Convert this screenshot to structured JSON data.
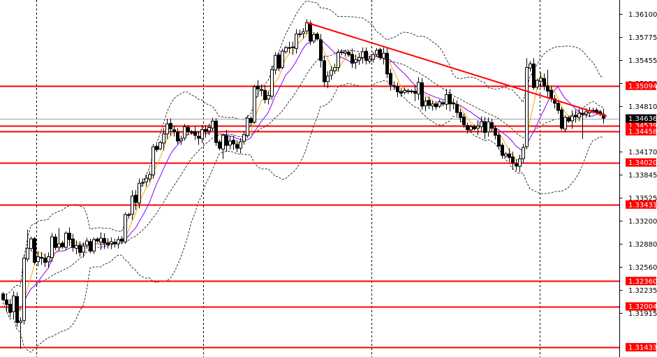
{
  "chart_data": {
    "type": "candlestick",
    "title": "",
    "xlabel": "",
    "ylabel": "",
    "ylim": [
      1.314,
      1.3625
    ],
    "grid": "vertical dotted separators",
    "y_ticks": [
      "1.36100",
      "1.35775",
      "1.35455",
      "1.35130",
      "1.34810",
      "1.34170",
      "1.33845",
      "1.33525",
      "1.33200",
      "1.32880",
      "1.32560",
      "1.32235",
      "1.31915"
    ],
    "current_price": {
      "label": "1.34636",
      "value": 1.34636,
      "bg": "#000000",
      "fg": "#ffffff"
    },
    "h_lines": [
      {
        "label": "1.35094",
        "value": 1.35094
      },
      {
        "label": "1.34539",
        "value": 1.34539
      },
      {
        "label": "1.34458",
        "value": 1.34458
      },
      {
        "label": "1.34020",
        "value": 1.3402
      },
      {
        "label": "1.33431",
        "value": 1.33431
      },
      {
        "label": "1.32360",
        "value": 1.3236
      },
      {
        "label": "1.32004",
        "value": 1.32004
      },
      {
        "label": "1.31433",
        "value": 1.31433
      }
    ],
    "trendline": {
      "from_bar": 87,
      "from_value": 1.3598,
      "to_bar": 173,
      "to_value": 1.3467
    },
    "closes": [
      1.321,
      1.3203,
      1.3192,
      1.3215,
      1.3178,
      1.318,
      1.3268,
      1.3282,
      1.3295,
      1.3262,
      1.327,
      1.3268,
      1.3262,
      1.327,
      1.3298,
      1.3283,
      1.3288,
      1.3284,
      1.3303,
      1.3294,
      1.3283,
      1.3286,
      1.3276,
      1.3285,
      1.3292,
      1.3278,
      1.3294,
      1.3292,
      1.3296,
      1.3289,
      1.3287,
      1.3291,
      1.3288,
      1.3294,
      1.3292,
      1.3329,
      1.3329,
      1.3355,
      1.3346,
      1.3373,
      1.3374,
      1.338,
      1.3385,
      1.3424,
      1.342,
      1.343,
      1.3442,
      1.3456,
      1.3449,
      1.3445,
      1.3432,
      1.3435,
      1.3452,
      1.3445,
      1.3444,
      1.344,
      1.3436,
      1.3448,
      1.3445,
      1.3451,
      1.346,
      1.343,
      1.3422,
      1.344,
      1.3426,
      1.3432,
      1.3428,
      1.3422,
      1.3431,
      1.3441,
      1.3464,
      1.3458,
      1.3508,
      1.3505,
      1.3503,
      1.349,
      1.3496,
      1.3532,
      1.3552,
      1.3534,
      1.3558,
      1.3563,
      1.3563,
      1.3563,
      1.3582,
      1.3582,
      1.3585,
      1.3598,
      1.3572,
      1.3581,
      1.3575,
      1.3545,
      1.3515,
      1.3523,
      1.3531,
      1.3535,
      1.3556,
      1.3556,
      1.3557,
      1.3553,
      1.3541,
      1.3546,
      1.3549,
      1.3557,
      1.3545,
      1.3547,
      1.3553,
      1.3559,
      1.3549,
      1.3555,
      1.3526,
      1.3511,
      1.3509,
      1.3501,
      1.3499,
      1.3503,
      1.3502,
      1.3501,
      1.3499,
      1.3514,
      1.3481,
      1.3488,
      1.3482,
      1.3484,
      1.348,
      1.3487,
      1.3484,
      1.3497,
      1.3484,
      1.3484,
      1.3472,
      1.3465,
      1.3455,
      1.3448,
      1.3452,
      1.3449,
      1.3453,
      1.3459,
      1.3444,
      1.3459,
      1.345,
      1.344,
      1.3425,
      1.3412,
      1.3414,
      1.3409,
      1.3401,
      1.3397,
      1.3407,
      1.3423,
      1.3535,
      1.354,
      1.3507,
      1.3517,
      1.352,
      1.3509,
      1.3502,
      1.3492,
      1.3485,
      1.3475,
      1.345,
      1.3465,
      1.346,
      1.3467,
      1.3466,
      1.3471,
      1.3469,
      1.3473,
      1.3475,
      1.3475,
      1.3472,
      1.347,
      1.3464
    ]
  }
}
